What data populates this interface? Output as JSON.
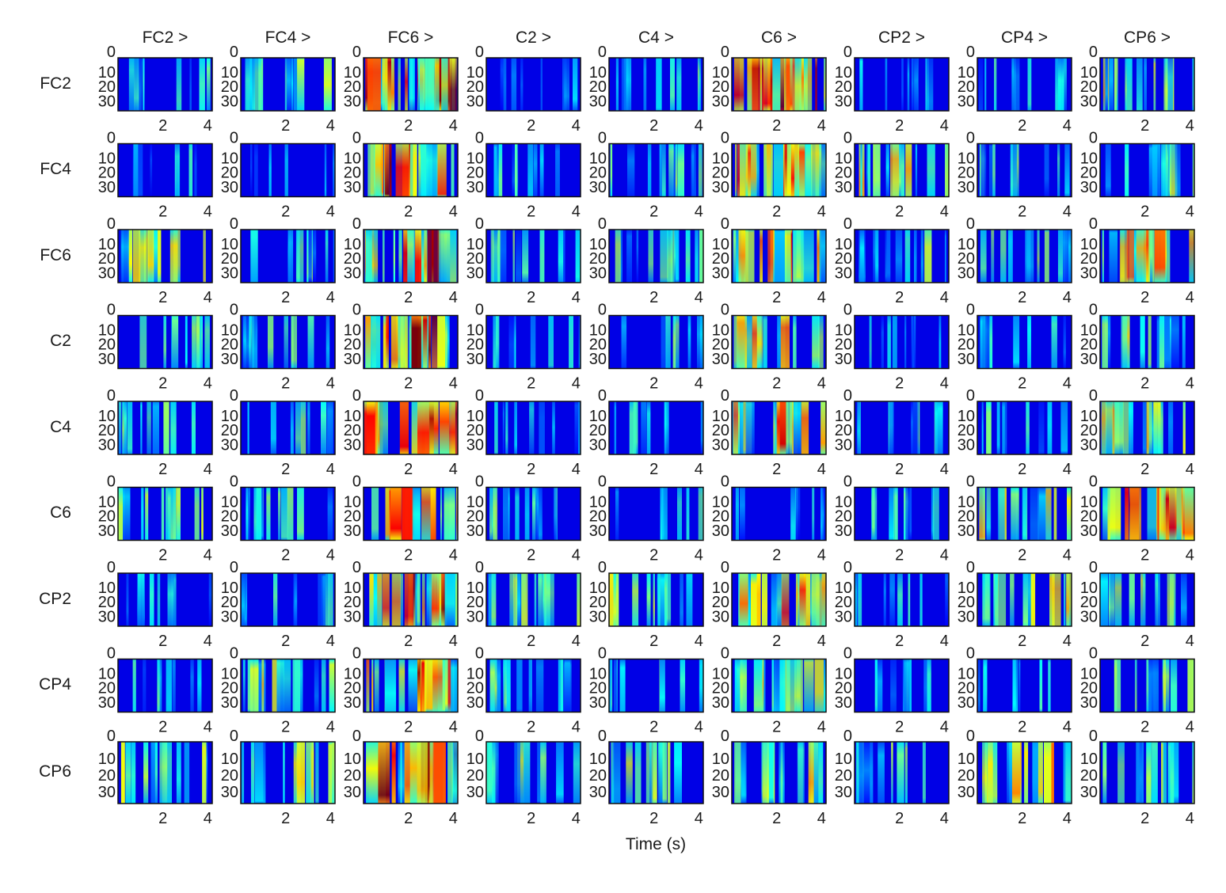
{
  "chart_data": {
    "type": "heatmap",
    "title": "",
    "description": "Matrix of time-frequency connectivity maps between EEG channels (source row > target column)",
    "xlabel": "Time (s)",
    "ylabel": "",
    "column_headers": [
      "FC2 >",
      "FC4 >",
      "FC6 >",
      "C2 >",
      "C4 >",
      "C6 >",
      "CP2 >",
      "CP4 >",
      "CP6 >"
    ],
    "row_labels": [
      "FC2",
      "FC4",
      "FC6",
      "C2",
      "C4",
      "C6",
      "CP2",
      "CP4",
      "CP6"
    ],
    "x_ticks": [
      "2",
      "4"
    ],
    "x_tick_values": [
      2,
      4
    ],
    "xlim": [
      0,
      4.2
    ],
    "y_ticks": [
      "0",
      "10",
      "20",
      "30"
    ],
    "y_tick_values": [
      0,
      10,
      20,
      30
    ],
    "ylim": [
      0,
      37
    ],
    "colormap": "jet",
    "intensity_note": "Approximate mean activation per panel (0 = dark blue, 1 = dark red), estimated visually",
    "intensity": [
      [
        0.15,
        0.3,
        0.85,
        0.1,
        0.2,
        0.8,
        0.15,
        0.15,
        0.4
      ],
      [
        0.12,
        0.02,
        0.85,
        0.15,
        0.25,
        0.8,
        0.45,
        0.2,
        0.3
      ],
      [
        0.35,
        0.25,
        0.7,
        0.25,
        0.3,
        0.65,
        0.3,
        0.25,
        0.55
      ],
      [
        0.25,
        0.25,
        0.85,
        0.1,
        0.2,
        0.55,
        0.1,
        0.15,
        0.35
      ],
      [
        0.2,
        0.2,
        0.8,
        0.12,
        0.15,
        0.65,
        0.2,
        0.2,
        0.4
      ],
      [
        0.3,
        0.3,
        0.65,
        0.3,
        0.15,
        0.1,
        0.2,
        0.4,
        0.7
      ],
      [
        0.2,
        0.15,
        0.75,
        0.3,
        0.35,
        0.6,
        0.12,
        0.5,
        0.3
      ],
      [
        0.15,
        0.4,
        0.8,
        0.3,
        0.2,
        0.55,
        0.15,
        0.12,
        0.3
      ],
      [
        0.3,
        0.45,
        0.85,
        0.3,
        0.3,
        0.5,
        0.25,
        0.5,
        0.3
      ]
    ]
  }
}
